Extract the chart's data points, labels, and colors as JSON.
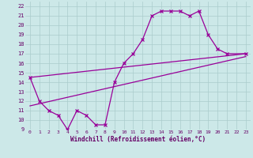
{
  "background_color": "#cce8e8",
  "grid_color": "#aacccc",
  "line_color": "#990099",
  "xlabel": "Windchill (Refroidissement éolien,°C)",
  "xlabel_color": "#660066",
  "tick_color": "#660066",
  "xlim": [
    -0.5,
    23.5
  ],
  "ylim": [
    9,
    22.5
  ],
  "xticks": [
    0,
    1,
    2,
    3,
    4,
    5,
    6,
    7,
    8,
    9,
    10,
    11,
    12,
    13,
    14,
    15,
    16,
    17,
    18,
    19,
    20,
    21,
    22,
    23
  ],
  "yticks": [
    9,
    10,
    11,
    12,
    13,
    14,
    15,
    16,
    17,
    18,
    19,
    20,
    21,
    22
  ],
  "line1_x": [
    0,
    1,
    2,
    3,
    4,
    5,
    6,
    7,
    8,
    9,
    10,
    11,
    12,
    13,
    14,
    15,
    16,
    17,
    18,
    19,
    20,
    21,
    23
  ],
  "line1_y": [
    14.5,
    12,
    11,
    10.5,
    9,
    11,
    10.5,
    9.5,
    9.5,
    14,
    16,
    17,
    18.5,
    21,
    21.5,
    21.5,
    21.5,
    21,
    21.5,
    19,
    17.5,
    17,
    17
  ],
  "line2_x": [
    0,
    23
  ],
  "line2_y": [
    11.5,
    16.7
  ],
  "line3_x": [
    0,
    23
  ],
  "line3_y": [
    14.5,
    17.0
  ]
}
